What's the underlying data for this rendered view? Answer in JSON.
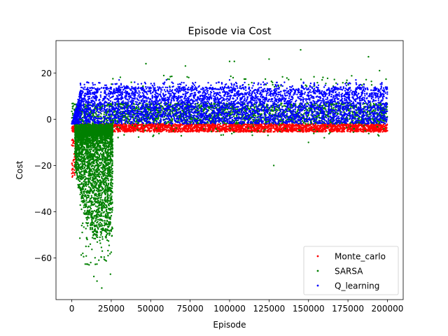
{
  "chart_data": {
    "type": "scatter",
    "title": "Episode via Cost",
    "xlabel": "Episode",
    "ylabel": "Cost",
    "xlim": [
      -10000,
      210000
    ],
    "ylim": [
      -78,
      34
    ],
    "xticks": [
      0,
      25000,
      50000,
      75000,
      100000,
      125000,
      150000,
      175000,
      200000
    ],
    "yticks": [
      -60,
      -40,
      -20,
      0,
      20
    ],
    "legend": {
      "location": "lower-right"
    },
    "series": [
      {
        "name": "Monte_carlo",
        "color": "#ff0000",
        "x_range": [
          0,
          200000
        ],
        "main_band": [
          -5.5,
          -2
        ],
        "early_outliers": [
          [
            300,
            -25
          ],
          [
            500,
            -20
          ],
          [
            900,
            -18
          ],
          [
            1500,
            -15
          ],
          [
            2200,
            -12
          ],
          [
            800,
            -9
          ]
        ]
      },
      {
        "name": "SARSA",
        "color": "#008000",
        "x_range": [
          0,
          200000
        ],
        "main_band": [
          -2,
          7
        ],
        "early_dense_region": {
          "x": [
            2000,
            26000
          ],
          "y_min": [
            -73,
            -2
          ]
        },
        "sample_outliers": [
          [
            7000,
            -58
          ],
          [
            12000,
            -62
          ],
          [
            14000,
            -68
          ],
          [
            16000,
            -70
          ],
          [
            19000,
            -73
          ],
          [
            11000,
            -63
          ],
          [
            9000,
            -55
          ],
          [
            24500,
            -67
          ],
          [
            23000,
            -59
          ],
          [
            47000,
            24
          ],
          [
            72000,
            23
          ],
          [
            100000,
            25
          ],
          [
            103000,
            25
          ],
          [
            125000,
            26
          ],
          [
            145000,
            30
          ],
          [
            188000,
            27
          ],
          [
            195000,
            21
          ],
          [
            128000,
            -20
          ],
          [
            150000,
            -10
          ],
          [
            160000,
            -8
          ]
        ]
      },
      {
        "name": "Q_learning",
        "color": "#0000ff",
        "x_range": [
          0,
          200000
        ],
        "main_band": [
          -2,
          14
        ],
        "ramp_end_x": 6000,
        "sample_outliers": [
          [
            8000,
            15
          ],
          [
            10000,
            16
          ],
          [
            30000,
            17
          ],
          [
            60000,
            17
          ],
          [
            100000,
            17
          ],
          [
            180000,
            17
          ]
        ]
      }
    ]
  }
}
